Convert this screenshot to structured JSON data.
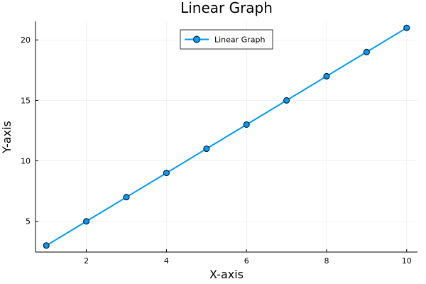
{
  "chart_data": {
    "type": "line",
    "title": "Linear Graph",
    "xlabel": "X-axis",
    "ylabel": "Y-axis",
    "x": [
      1,
      2,
      3,
      4,
      5,
      6,
      7,
      8,
      9,
      10
    ],
    "series": [
      {
        "name": "Linear Graph",
        "values": [
          3,
          5,
          7,
          9,
          11,
          13,
          15,
          17,
          19,
          21
        ],
        "color": "#009af9"
      }
    ],
    "xlim": [
      0.73,
      10.27
    ],
    "ylim": [
      2.46,
      21.54
    ],
    "xticks": [
      2,
      4,
      6,
      8,
      10
    ],
    "yticks": [
      5,
      10,
      15,
      20
    ],
    "grid": true,
    "legend_position": "top-center"
  }
}
